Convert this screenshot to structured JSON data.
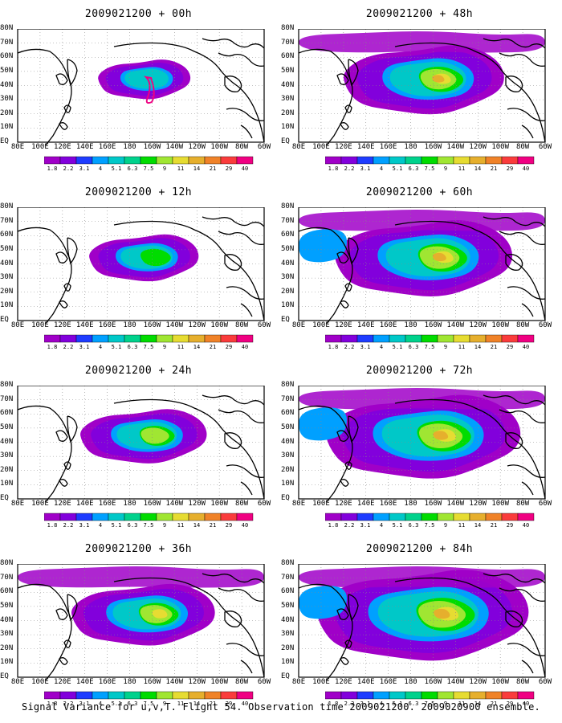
{
  "panels": [
    {
      "title": "2009021200 + 00h",
      "col": 0,
      "row": 0,
      "level": 0
    },
    {
      "title": "2009021200 + 12h",
      "col": 0,
      "row": 1,
      "level": 1
    },
    {
      "title": "2009021200 + 24h",
      "col": 0,
      "row": 2,
      "level": 2
    },
    {
      "title": "2009021200 + 36h",
      "col": 0,
      "row": 3,
      "level": 3
    },
    {
      "title": "2009021200 + 48h",
      "col": 1,
      "row": 0,
      "level": 4
    },
    {
      "title": "2009021200 + 60h",
      "col": 1,
      "row": 1,
      "level": 5
    },
    {
      "title": "2009021200 + 72h",
      "col": 1,
      "row": 2,
      "level": 6
    },
    {
      "title": "2009021200 + 84h",
      "col": 1,
      "row": 3,
      "level": 7
    }
  ],
  "lat_labels": [
    "80N",
    "70N",
    "60N",
    "50N",
    "40N",
    "30N",
    "20N",
    "10N",
    "EQ"
  ],
  "lon_labels": [
    "80E",
    "100E",
    "120E",
    "140E",
    "160E",
    "180",
    "160W",
    "140W",
    "120W",
    "100W",
    "80W",
    "60W"
  ],
  "colorbar": {
    "labels": [
      "1.8",
      "2.2",
      "3.1",
      "4",
      "5.1",
      "6.3",
      "7.5",
      "9",
      "11",
      "14",
      "21",
      "29",
      "40"
    ],
    "colors": [
      "#a000c8",
      "#8200dc",
      "#1e3cff",
      "#00a0ff",
      "#00c8c8",
      "#00d28c",
      "#00dc00",
      "#a0e632",
      "#e6dc32",
      "#e6af2d",
      "#f08228",
      "#fa3c3c",
      "#f00082"
    ]
  },
  "caption": "Signal Variance for u,v,T. Flight 54. Observation time 2009021200. 2009020900 ensemble."
}
